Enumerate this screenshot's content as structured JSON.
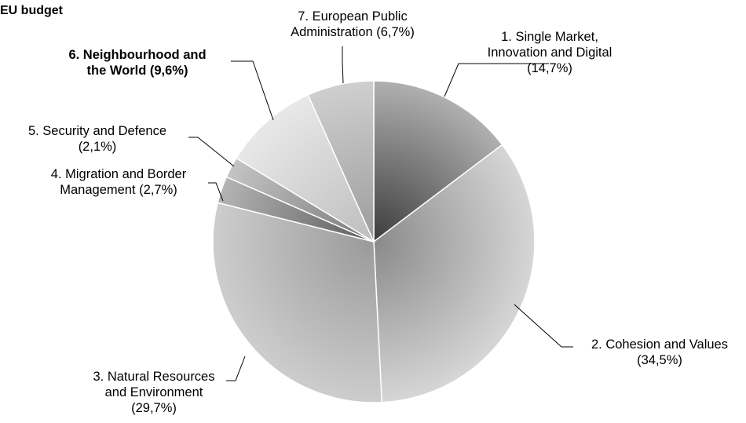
{
  "chart_data": {
    "type": "pie",
    "title": "EU budget",
    "start_angle_deg": 0,
    "direction": "clockwise",
    "slices": [
      {
        "label_lines": [
          "1. Single Market,",
          "Innovation and Digital",
          "(14,7%)"
        ],
        "value": 14.7,
        "bold": false
      },
      {
        "label_lines": [
          "2. Cohesion and Values",
          "(34,5%)"
        ],
        "value": 34.5,
        "bold": false
      },
      {
        "label_lines": [
          "3. Natural Resources",
          "and Environment",
          "(29,7%)"
        ],
        "value": 29.7,
        "bold": false
      },
      {
        "label_lines": [
          "4. Migration and Border",
          "Management (2,7%)"
        ],
        "value": 2.7,
        "bold": false
      },
      {
        "label_lines": [
          "5. Security and Defence",
          "(2,1%)"
        ],
        "value": 2.1,
        "bold": false
      },
      {
        "label_lines": [
          "6. Neighbourhood and",
          "the World (9,6%)"
        ],
        "value": 9.6,
        "bold": true
      },
      {
        "label_lines": [
          "7. European Public",
          "Administration (6,7%)"
        ],
        "value": 6.7,
        "bold": false
      }
    ],
    "colors": [
      {
        "inner": "#3c3c3c",
        "outer": "#b0b0b0"
      },
      {
        "inner": "#8a8a8a",
        "outer": "#d6d6d6"
      },
      {
        "inner": "#9a9a9a",
        "outer": "#cdcdcd"
      },
      {
        "inner": "#5c5c5c",
        "outer": "#b4b4b4"
      },
      {
        "inner": "#7a7a7a",
        "outer": "#c4c4c4"
      },
      {
        "inner": "#bdbdbd",
        "outer": "#e8e8e8"
      },
      {
        "inner": "#9c9c9c",
        "outer": "#cfcfcf"
      }
    ]
  }
}
